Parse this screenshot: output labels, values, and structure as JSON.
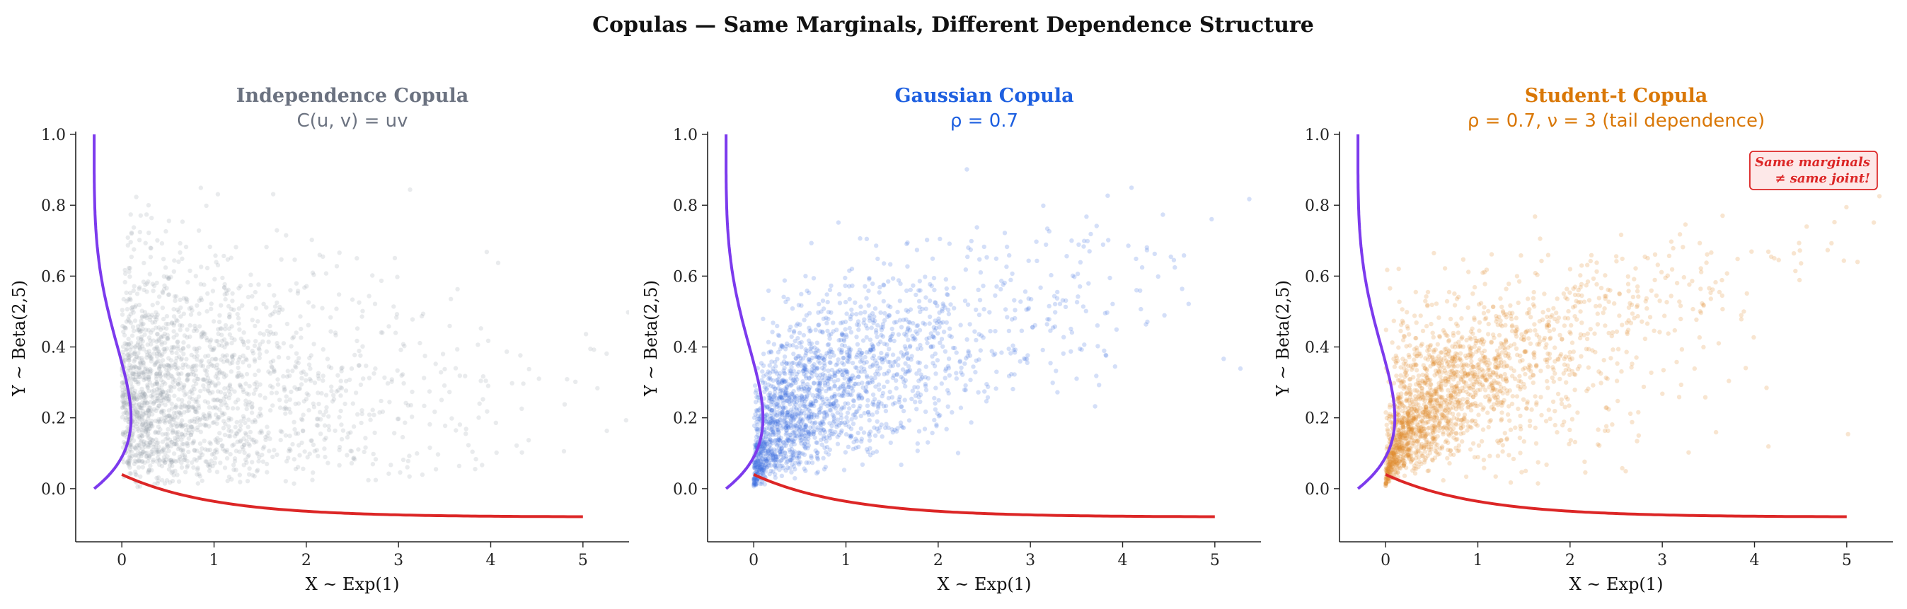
{
  "figure": {
    "suptitle": "Copulas — Same Marginals, Different Dependence Structure",
    "colors": {
      "marginal_y": "#7c3aed",
      "marginal_x": "#dc2626"
    }
  },
  "chart_data": [
    {
      "type": "scatter",
      "title": "Independence Copula",
      "subtitle": "C(u, v) = uv",
      "title_color": "#6b7280",
      "point_color": "#9ca3af",
      "xlabel": "X ~ Exp(1)",
      "ylabel": "Y ~ Beta(2,5)",
      "xlim": [
        -0.5,
        5.5
      ],
      "ylim": [
        -0.15,
        1.0
      ],
      "xticks": [
        "0",
        "1",
        "2",
        "3",
        "4",
        "5"
      ],
      "yticks": [
        "0.0",
        "0.2",
        "0.4",
        "0.6",
        "0.8",
        "1.0"
      ],
      "copula": "independence",
      "rho": 0,
      "n_points": 2000,
      "marginal_overlays": [
        "Beta(2,5) density along y-axis",
        "Exp(1) density along x-axis"
      ],
      "annotation": ""
    },
    {
      "type": "scatter",
      "title": "Gaussian Copula",
      "subtitle": "ρ = 0.7",
      "title_color": "#1d5fe0",
      "point_color": "#3b6fe0",
      "xlabel": "X ~ Exp(1)",
      "ylabel": "Y ~ Beta(2,5)",
      "xlim": [
        -0.5,
        5.5
      ],
      "ylim": [
        -0.15,
        1.0
      ],
      "xticks": [
        "0",
        "1",
        "2",
        "3",
        "4",
        "5"
      ],
      "yticks": [
        "0.0",
        "0.2",
        "0.4",
        "0.6",
        "0.8",
        "1.0"
      ],
      "copula": "gaussian",
      "rho": 0.7,
      "n_points": 2000,
      "marginal_overlays": [
        "Beta(2,5) density along y-axis",
        "Exp(1) density along x-axis"
      ],
      "annotation": ""
    },
    {
      "type": "scatter",
      "title": "Student-t Copula",
      "subtitle": "ρ = 0.7,  ν = 3 (tail dependence)",
      "title_color": "#d97706",
      "point_color": "#e08a2a",
      "xlabel": "X ~ Exp(1)",
      "ylabel": "Y ~ Beta(2,5)",
      "xlim": [
        -0.5,
        5.5
      ],
      "ylim": [
        -0.15,
        1.0
      ],
      "xticks": [
        "0",
        "1",
        "2",
        "3",
        "4",
        "5"
      ],
      "yticks": [
        "0.0",
        "0.2",
        "0.4",
        "0.6",
        "0.8",
        "1.0"
      ],
      "copula": "student-t",
      "rho": 0.7,
      "nu": 3,
      "n_points": 2000,
      "marginal_overlays": [
        "Beta(2,5) density along y-axis",
        "Exp(1) density along x-axis"
      ],
      "annotation": "Same marginals ≠ same joint!",
      "annotation_lines": [
        "Same marginals",
        "≠  same joint!"
      ],
      "annotation_color": "#dc2626",
      "annotation_fill": "#fde8e8"
    }
  ]
}
